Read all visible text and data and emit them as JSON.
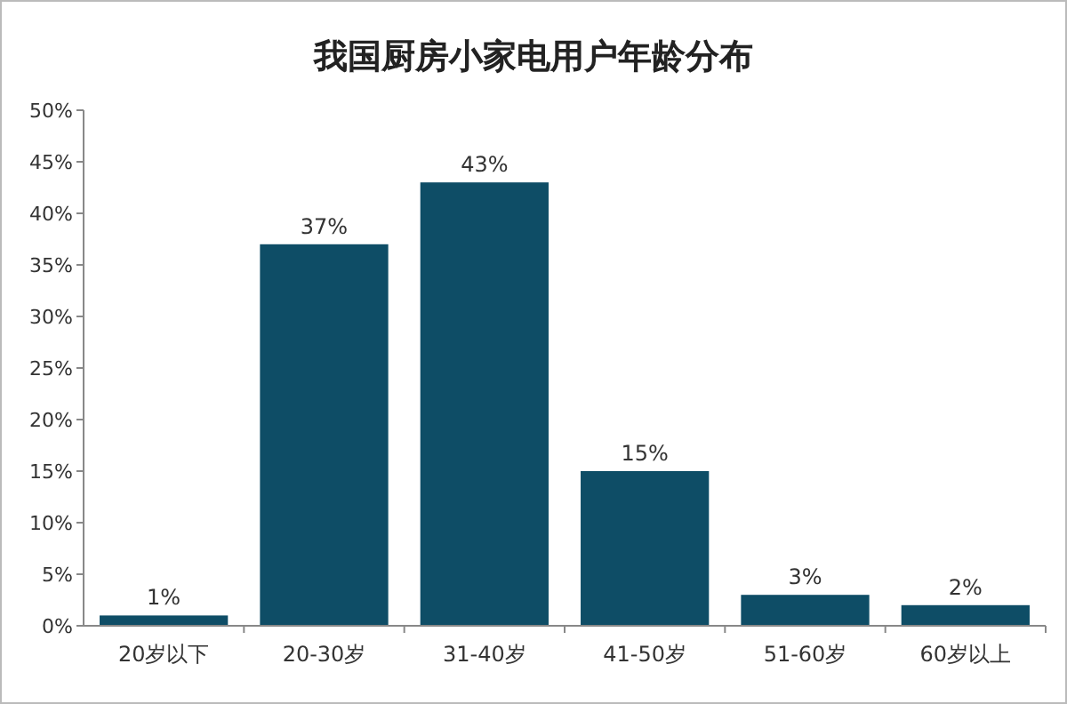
{
  "chart_data": {
    "type": "bar",
    "title": "我国厨房小家电用户年龄分布",
    "categories": [
      "20岁以下",
      "20-30岁",
      "31-40岁",
      "41-50岁",
      "51-60岁",
      "60岁以上"
    ],
    "values": [
      1,
      37,
      43,
      15,
      3,
      2
    ],
    "value_labels": [
      "1%",
      "37%",
      "43%",
      "15%",
      "3%",
      "2%"
    ],
    "color": "#0e4d66",
    "ylim": [
      0,
      50
    ],
    "yticks": [
      {
        "value": 0,
        "label": "0%"
      },
      {
        "value": 5,
        "label": "5%"
      },
      {
        "value": 10,
        "label": "10%"
      },
      {
        "value": 15,
        "label": "15%"
      },
      {
        "value": 20,
        "label": "20%"
      },
      {
        "value": 25,
        "label": "25%"
      },
      {
        "value": 30,
        "label": "30%"
      },
      {
        "value": 35,
        "label": "35%"
      },
      {
        "value": 40,
        "label": "40%"
      },
      {
        "value": 45,
        "label": "45%"
      },
      {
        "value": 50,
        "label": "50%"
      }
    ],
    "grid": false
  }
}
